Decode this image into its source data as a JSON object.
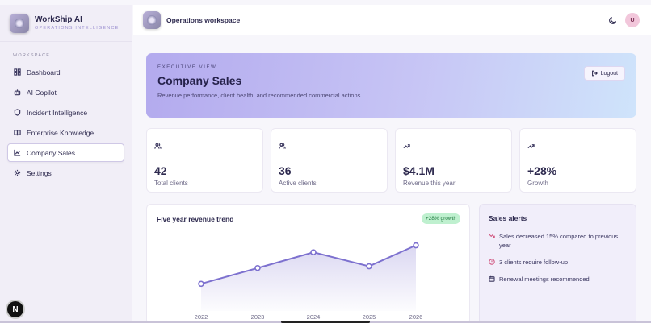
{
  "brand": {
    "name": "WorkShip AI",
    "subtitle": "OPERATIONS INTELLIGENCE"
  },
  "sidebar": {
    "section_label": "WORKSPACE",
    "items": [
      {
        "label": "Dashboard",
        "icon": "grid-icon",
        "active": false
      },
      {
        "label": "AI Copilot",
        "icon": "bot-icon",
        "active": false
      },
      {
        "label": "Incident Intelligence",
        "icon": "shield-icon",
        "active": false
      },
      {
        "label": "Enterprise Knowledge",
        "icon": "book-icon",
        "active": false
      },
      {
        "label": "Company Sales",
        "icon": "chart-icon",
        "active": true
      },
      {
        "label": "Settings",
        "icon": "gear-icon",
        "active": false
      }
    ],
    "bottom_badge": "N"
  },
  "topbar": {
    "title": "Operations workspace",
    "avatar_initial": "U"
  },
  "hero": {
    "eyebrow": "EXECUTIVE VIEW",
    "title": "Company Sales",
    "description": "Revenue performance, client health, and recommended commercial actions.",
    "logout_label": "Logout"
  },
  "stats": [
    {
      "value": "42",
      "label": "Total clients",
      "icon": "users-icon"
    },
    {
      "value": "36",
      "label": "Active clients",
      "icon": "users-icon"
    },
    {
      "value": "$4.1M",
      "label": "Revenue this year",
      "icon": "trending-up-icon"
    },
    {
      "value": "+28%",
      "label": "Growth",
      "icon": "trending-up-icon"
    }
  ],
  "trend": {
    "title": "Five year revenue trend",
    "badge": "+28% growth"
  },
  "chart_data": {
    "type": "area",
    "title": "Five year revenue trend",
    "categories": [
      "2022",
      "2023",
      "2024",
      "2025",
      "2026"
    ],
    "values": [
      1.0,
      1.9,
      2.8,
      2.0,
      3.2
    ],
    "ylim": [
      0,
      3.5
    ],
    "grid": false,
    "color": "#7d71cf"
  },
  "alerts": {
    "title": "Sales alerts",
    "items": [
      {
        "text": "Sales decreased 15% compared to previous year",
        "icon": "trending-down-icon",
        "color": "#d0547e"
      },
      {
        "text": "3 clients require follow-up",
        "icon": "alert-circle-icon",
        "color": "#d0547e"
      },
      {
        "text": "Renewal meetings recommended",
        "icon": "calendar-icon",
        "color": "#3d3960"
      }
    ]
  }
}
